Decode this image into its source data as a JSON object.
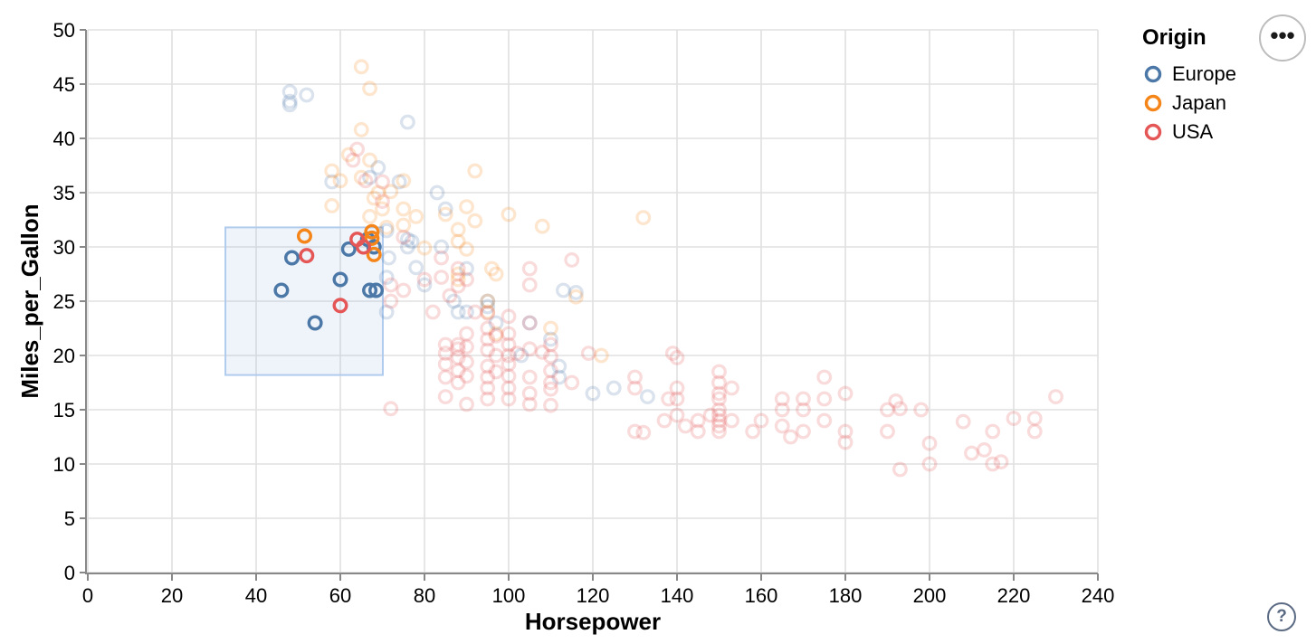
{
  "controls": {
    "menu_icon": "•••",
    "help_icon": "?"
  },
  "chart_data": {
    "type": "scatter",
    "title": "",
    "xlabel": "Horsepower",
    "ylabel": "Miles_per_Gallon",
    "xlim": [
      0,
      240
    ],
    "ylim": [
      0,
      50
    ],
    "x_ticks": [
      0,
      20,
      40,
      60,
      80,
      100,
      120,
      140,
      160,
      180,
      200,
      220,
      240
    ],
    "y_ticks": [
      0,
      5,
      10,
      15,
      20,
      25,
      30,
      35,
      40,
      45,
      50
    ],
    "grid": true,
    "legend": {
      "title": "Origin",
      "position": "top-right"
    },
    "brush_selection": {
      "x": [
        32.7,
        70.1
      ],
      "y": [
        18.2,
        31.8
      ],
      "fill": "#9dbde6",
      "fill_opacity": 0.16,
      "stroke": "#b0cbee"
    },
    "point_style": {
      "shape": "open-circle",
      "unselected_opacity": 0.21,
      "selected_opacity": 1
    },
    "series": [
      {
        "name": "Europe",
        "color": "#4c78a8",
        "selected": [
          [
            46,
            26
          ],
          [
            48.5,
            29
          ],
          [
            54,
            23
          ],
          [
            60,
            27
          ],
          [
            62,
            29.8
          ],
          [
            66.5,
            30.7
          ],
          [
            67,
            26
          ],
          [
            68.5,
            26
          ],
          [
            68,
            30
          ]
        ],
        "unselected": [
          [
            48,
            43.4
          ],
          [
            48,
            44.3
          ],
          [
            48,
            43.1
          ],
          [
            52,
            44
          ],
          [
            58,
            36
          ],
          [
            67,
            36.4
          ],
          [
            69,
            37.3
          ],
          [
            71.5,
            29
          ],
          [
            71,
            24
          ],
          [
            71,
            31.5
          ],
          [
            71,
            27.2
          ],
          [
            74,
            36
          ],
          [
            76,
            30
          ],
          [
            76,
            30.7
          ],
          [
            76,
            41.5
          ],
          [
            77,
            30.5
          ],
          [
            78,
            28.1
          ],
          [
            80,
            26.5
          ],
          [
            83,
            35
          ],
          [
            84,
            30
          ],
          [
            85,
            33.5
          ],
          [
            87,
            25
          ],
          [
            88,
            24
          ],
          [
            90,
            24
          ],
          [
            90,
            28
          ],
          [
            95,
            25
          ],
          [
            95,
            24.5
          ],
          [
            97,
            23
          ],
          [
            103,
            20
          ],
          [
            105,
            23
          ],
          [
            110,
            21.5
          ],
          [
            112,
            18
          ],
          [
            112,
            19
          ],
          [
            113,
            26
          ],
          [
            116,
            25.8
          ],
          [
            120,
            16.5
          ],
          [
            125,
            17
          ],
          [
            133,
            16.2
          ]
        ]
      },
      {
        "name": "Japan",
        "color": "#f58518",
        "selected": [
          [
            51.5,
            31
          ],
          [
            67.5,
            31.4
          ],
          [
            67.5,
            30.8
          ],
          [
            68,
            29.3
          ]
        ],
        "unselected": [
          [
            65,
            46.6
          ],
          [
            67,
            44.6
          ],
          [
            65,
            40.8
          ],
          [
            67,
            38
          ],
          [
            62,
            38.5
          ],
          [
            58,
            37
          ],
          [
            60,
            36.1
          ],
          [
            69,
            35
          ],
          [
            65,
            36.4
          ],
          [
            58,
            33.8
          ],
          [
            68,
            34.5
          ],
          [
            75,
            36.1
          ],
          [
            72,
            35.1
          ],
          [
            75,
            33.5
          ],
          [
            70,
            33.5
          ],
          [
            75,
            32
          ],
          [
            67,
            32.8
          ],
          [
            78,
            32.8
          ],
          [
            71,
            31.8
          ],
          [
            88,
            31.6
          ],
          [
            88,
            30.5
          ],
          [
            92,
            37
          ],
          [
            85,
            33
          ],
          [
            90,
            33.7
          ],
          [
            92,
            32.4
          ],
          [
            96,
            28
          ],
          [
            88,
            27
          ],
          [
            88,
            27.5
          ],
          [
            97,
            27.5
          ],
          [
            95,
            25
          ],
          [
            95,
            24
          ],
          [
            97,
            22
          ],
          [
            110,
            22.5
          ],
          [
            116,
            25.4
          ],
          [
            122,
            20
          ],
          [
            132,
            32.7
          ],
          [
            108,
            31.9
          ],
          [
            90,
            29.8
          ],
          [
            80,
            29.9
          ],
          [
            100,
            33
          ]
        ]
      },
      {
        "name": "USA",
        "color": "#e45756",
        "selected": [
          [
            52,
            29.2
          ],
          [
            60,
            24.6
          ],
          [
            64,
            30.7
          ],
          [
            65.5,
            30
          ]
        ],
        "unselected": [
          [
            63,
            38
          ],
          [
            64,
            39
          ],
          [
            66,
            36.1
          ],
          [
            70,
            36
          ],
          [
            70,
            34.2
          ],
          [
            75,
            30.9
          ],
          [
            72,
            26.5
          ],
          [
            75,
            26
          ],
          [
            72,
            25
          ],
          [
            80,
            27
          ],
          [
            84,
            29
          ],
          [
            84,
            27.2
          ],
          [
            88,
            26.4
          ],
          [
            90,
            27
          ],
          [
            82,
            24
          ],
          [
            92,
            24
          ],
          [
            88,
            28
          ],
          [
            86,
            25.5
          ],
          [
            115,
            28.8
          ],
          [
            105,
            28
          ],
          [
            105,
            26.5
          ],
          [
            85,
            21
          ],
          [
            85,
            20.2
          ],
          [
            85,
            19.2
          ],
          [
            85,
            18
          ],
          [
            85,
            16.2
          ],
          [
            88,
            21
          ],
          [
            88,
            20.6
          ],
          [
            88,
            19.8
          ],
          [
            88,
            18.6
          ],
          [
            88,
            17.5
          ],
          [
            90,
            22
          ],
          [
            90,
            20.8
          ],
          [
            90,
            19.4
          ],
          [
            90,
            18.1
          ],
          [
            90,
            15.5
          ],
          [
            95,
            23.9
          ],
          [
            95,
            22.5
          ],
          [
            95,
            21.5
          ],
          [
            95,
            20.5
          ],
          [
            95,
            19
          ],
          [
            95,
            18
          ],
          [
            95,
            17
          ],
          [
            95,
            16
          ],
          [
            97,
            21.8
          ],
          [
            97,
            20
          ],
          [
            97,
            18.5
          ],
          [
            100,
            23.6
          ],
          [
            100,
            22
          ],
          [
            100,
            21
          ],
          [
            100,
            20
          ],
          [
            100,
            19.2
          ],
          [
            100,
            18.1
          ],
          [
            100,
            17
          ],
          [
            100,
            16
          ],
          [
            102,
            20.2
          ],
          [
            105,
            23
          ],
          [
            105,
            20.6
          ],
          [
            105,
            18
          ],
          [
            105,
            16.5
          ],
          [
            105,
            15.5
          ],
          [
            108,
            20.3
          ],
          [
            110,
            21
          ],
          [
            110,
            19.9
          ],
          [
            110,
            18.6
          ],
          [
            110,
            17.5
          ],
          [
            110,
            16.9
          ],
          [
            110,
            15.4
          ],
          [
            115,
            17.5
          ],
          [
            72,
            15.1
          ],
          [
            119,
            20.2
          ],
          [
            130,
            18
          ],
          [
            130,
            17
          ],
          [
            130,
            13
          ],
          [
            132,
            12.9
          ],
          [
            137,
            14
          ],
          [
            138,
            16
          ],
          [
            139,
            20.2
          ],
          [
            140,
            19.8
          ],
          [
            140,
            17
          ],
          [
            140,
            16
          ],
          [
            140,
            14.5
          ],
          [
            142,
            13.5
          ],
          [
            145,
            13
          ],
          [
            145,
            14
          ],
          [
            148,
            14.5
          ],
          [
            150,
            18.5
          ],
          [
            150,
            17.5
          ],
          [
            150,
            16.5
          ],
          [
            150,
            16
          ],
          [
            150,
            15
          ],
          [
            150,
            14.5
          ],
          [
            150,
            14
          ],
          [
            150,
            13.5
          ],
          [
            150,
            13
          ],
          [
            153,
            17
          ],
          [
            153,
            14
          ],
          [
            158,
            13
          ],
          [
            160,
            14
          ],
          [
            165,
            15
          ],
          [
            165,
            16
          ],
          [
            165,
            13.5
          ],
          [
            167,
            12.5
          ],
          [
            170,
            15
          ],
          [
            170,
            13
          ],
          [
            170,
            16
          ],
          [
            175,
            18
          ],
          [
            175,
            16
          ],
          [
            175,
            14
          ],
          [
            180,
            16.5
          ],
          [
            180,
            13
          ],
          [
            180,
            12
          ],
          [
            190,
            15
          ],
          [
            190,
            13
          ],
          [
            192,
            15.8
          ],
          [
            193,
            15.1
          ],
          [
            193,
            9.5
          ],
          [
            198,
            15
          ],
          [
            200,
            11.9
          ],
          [
            200,
            10
          ],
          [
            208,
            13.9
          ],
          [
            210,
            11
          ],
          [
            213,
            11.3
          ],
          [
            215,
            10
          ],
          [
            215,
            13
          ],
          [
            217,
            10.2
          ],
          [
            220,
            14.2
          ],
          [
            225,
            14.2
          ],
          [
            225,
            13
          ],
          [
            230,
            16.2
          ]
        ]
      }
    ]
  }
}
